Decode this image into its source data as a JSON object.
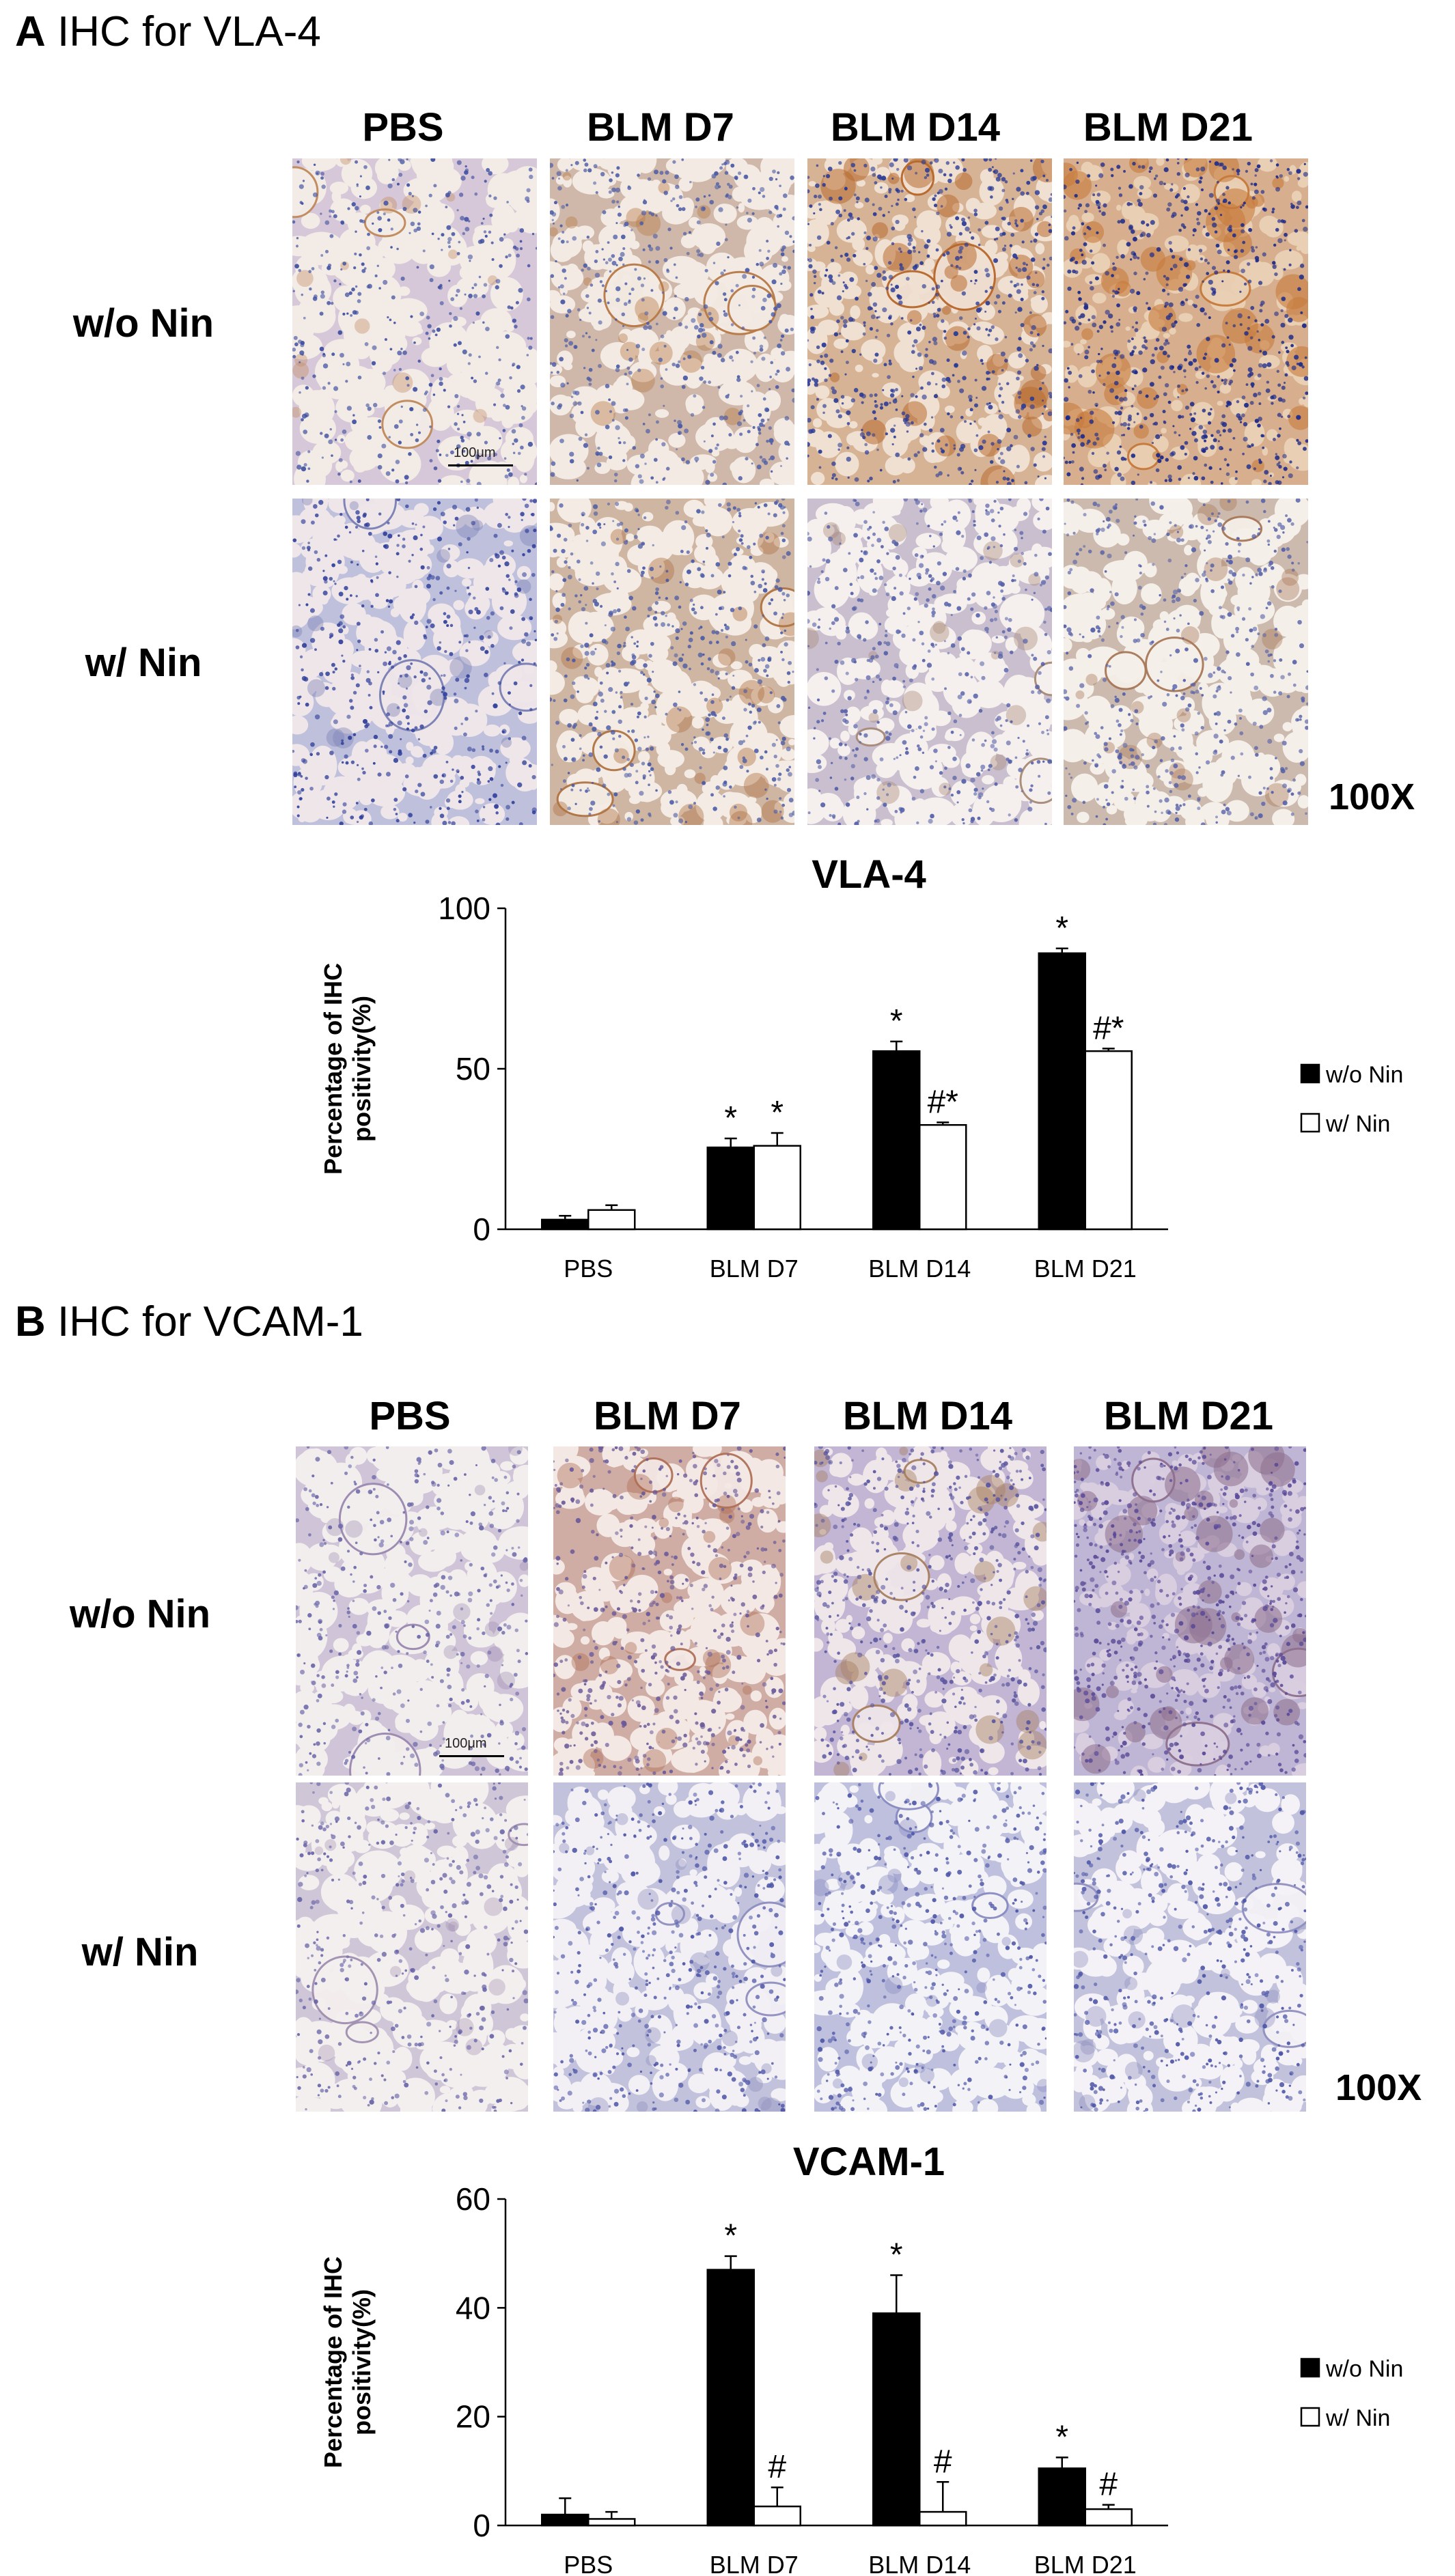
{
  "panelA": {
    "letter": "A",
    "title": "IHC for VLA-4",
    "columns": [
      "PBS",
      "BLM D7",
      "BLM D14",
      "BLM D21"
    ],
    "rows": [
      "w/o Nin",
      "w/ Nin"
    ],
    "magnification": "100X",
    "scale_text": "100μm",
    "tiles": [
      {
        "bg": "#f2ebe6",
        "wall": "#b49bb8",
        "stain": "#c08a5a",
        "density": 0.35,
        "nuclei": "#3f4fa0"
      },
      {
        "bg": "#f3ebe3",
        "wall": "#a87e62",
        "stain": "#b87a48",
        "density": 0.5,
        "nuclei": "#4a5aa5"
      },
      {
        "bg": "#f0e0d2",
        "wall": "#b5743e",
        "stain": "#b8672a",
        "density": 0.8,
        "nuclei": "#2a3a95"
      },
      {
        "bg": "#e9cfb3",
        "wall": "#b76e32",
        "stain": "#c77a3a",
        "density": 0.95,
        "nuclei": "#1c2a8a"
      },
      {
        "bg": "#efe6ea",
        "wall": "#8b8cc0",
        "stain": "#7a7fb5",
        "density": 0.45,
        "nuclei": "#2f3f9a"
      },
      {
        "bg": "#f4ece4",
        "wall": "#a77a58",
        "stain": "#b07444",
        "density": 0.55,
        "nuclei": "#4a5aa5"
      },
      {
        "bg": "#f5f0ee",
        "wall": "#9c8aa8",
        "stain": "#a88a78",
        "density": 0.45,
        "nuclei": "#5560a8"
      },
      {
        "bg": "#f5efe9",
        "wall": "#a0826a",
        "stain": "#a87858",
        "density": 0.45,
        "nuclei": "#5560a8"
      }
    ],
    "chart_data": {
      "type": "bar",
      "title": "VLA-4",
      "ylabel": "Percentage of IHC positivity(%)",
      "categories": [
        "PBS",
        "BLM D7",
        "BLM D14",
        "BLM D21"
      ],
      "ylim": [
        0,
        100
      ],
      "yticks": [
        0,
        50,
        100
      ],
      "series": [
        {
          "name": "w/o Nin",
          "color": "#000000",
          "values": [
            3,
            25.5,
            55.5,
            86
          ],
          "errors": [
            1.2,
            2.8,
            3,
            1.5
          ],
          "marks": [
            "",
            "*",
            "*",
            "*"
          ]
        },
        {
          "name": "w/ Nin",
          "color": "#ffffff",
          "values": [
            6,
            26,
            32.5,
            55.5
          ],
          "errors": [
            1.5,
            4,
            0.8,
            0.8
          ],
          "marks": [
            "",
            "*",
            "#*",
            "#*"
          ]
        }
      ],
      "legend": "right"
    }
  },
  "panelB": {
    "letter": "B",
    "title": "IHC for VCAM-1",
    "columns": [
      "PBS",
      "BLM D7",
      "BLM D14",
      "BLM D21"
    ],
    "rows": [
      "w/o Nin",
      "w/ Nin"
    ],
    "magnification": "100X",
    "scale_text": "100μm",
    "tiles": [
      {
        "bg": "#f3eeee",
        "wall": "#a994b8",
        "stain": "#9a88b0",
        "density": 0.3,
        "nuclei": "#6a66a8"
      },
      {
        "bg": "#f3e8e4",
        "wall": "#a8685a",
        "stain": "#b07058",
        "density": 0.55,
        "nuclei": "#6a5a9a"
      },
      {
        "bg": "#efe6ea",
        "wall": "#8f7ab0",
        "stain": "#a88060",
        "density": 0.6,
        "nuclei": "#5a56a0"
      },
      {
        "bg": "#d9cde0",
        "wall": "#8a78b0",
        "stain": "#8e6f8e",
        "density": 0.9,
        "nuclei": "#5a4a98"
      },
      {
        "bg": "#f4efef",
        "wall": "#a898b8",
        "stain": "#a090b0",
        "density": 0.3,
        "nuclei": "#6a66a8"
      },
      {
        "bg": "#f2f0f5",
        "wall": "#8f8fc0",
        "stain": "#8f8fc0",
        "density": 0.45,
        "nuclei": "#4f57a8"
      },
      {
        "bg": "#f3f2f6",
        "wall": "#8a8cc2",
        "stain": "#8a8cc2",
        "density": 0.45,
        "nuclei": "#4f57a8"
      },
      {
        "bg": "#f4f2f6",
        "wall": "#9090c0",
        "stain": "#9090c0",
        "density": 0.45,
        "nuclei": "#4f57a8"
      }
    ],
    "chart_data": {
      "type": "bar",
      "title": "VCAM-1",
      "ylabel": "Percentage of IHC positivity(%)",
      "categories": [
        "PBS",
        "BLM D7",
        "BLM D14",
        "BLM D21"
      ],
      "ylim": [
        0,
        60
      ],
      "yticks": [
        0,
        20,
        40,
        60
      ],
      "series": [
        {
          "name": "w/o Nin",
          "color": "#000000",
          "values": [
            2,
            47,
            39,
            10.5
          ],
          "errors": [
            3,
            2.5,
            7,
            2
          ],
          "marks": [
            "",
            "*",
            "*",
            "*"
          ]
        },
        {
          "name": "w/ Nin",
          "color": "#ffffff",
          "values": [
            1.2,
            3.5,
            2.5,
            3
          ],
          "errors": [
            1.3,
            3.5,
            5.5,
            0.8
          ],
          "marks": [
            "",
            "#",
            "#",
            "#"
          ]
        }
      ],
      "legend": "right"
    }
  }
}
